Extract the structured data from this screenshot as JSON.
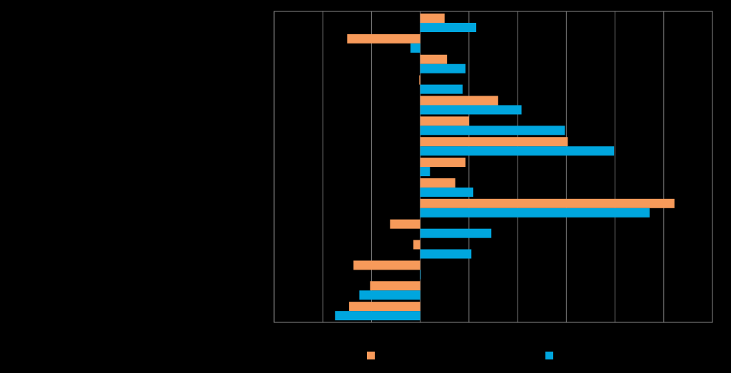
{
  "chart_data": {
    "type": "bar",
    "orientation": "horizontal",
    "title": "",
    "xlabel": "",
    "ylabel": "",
    "xlim": [
      -3,
      6
    ],
    "grid": true,
    "legend_position": "bottom",
    "categories": [
      "",
      "",
      "",
      "",
      "",
      "",
      "",
      "",
      "",
      "",
      "",
      "",
      "",
      "",
      ""
    ],
    "series": [
      {
        "color": "#F79A5A",
        "values": [
          0.5,
          -1.5,
          0.55,
          -0.02,
          1.6,
          1.0,
          3.03,
          0.93,
          0.72,
          5.22,
          -0.62,
          -0.14,
          -1.37,
          -1.03,
          -1.46
        ]
      },
      {
        "color": "#00A6DE",
        "values": [
          1.15,
          -0.2,
          0.93,
          0.87,
          2.08,
          2.97,
          3.98,
          0.2,
          1.09,
          4.71,
          1.46,
          1.05,
          0.0,
          -1.25,
          -1.75
        ]
      }
    ]
  }
}
